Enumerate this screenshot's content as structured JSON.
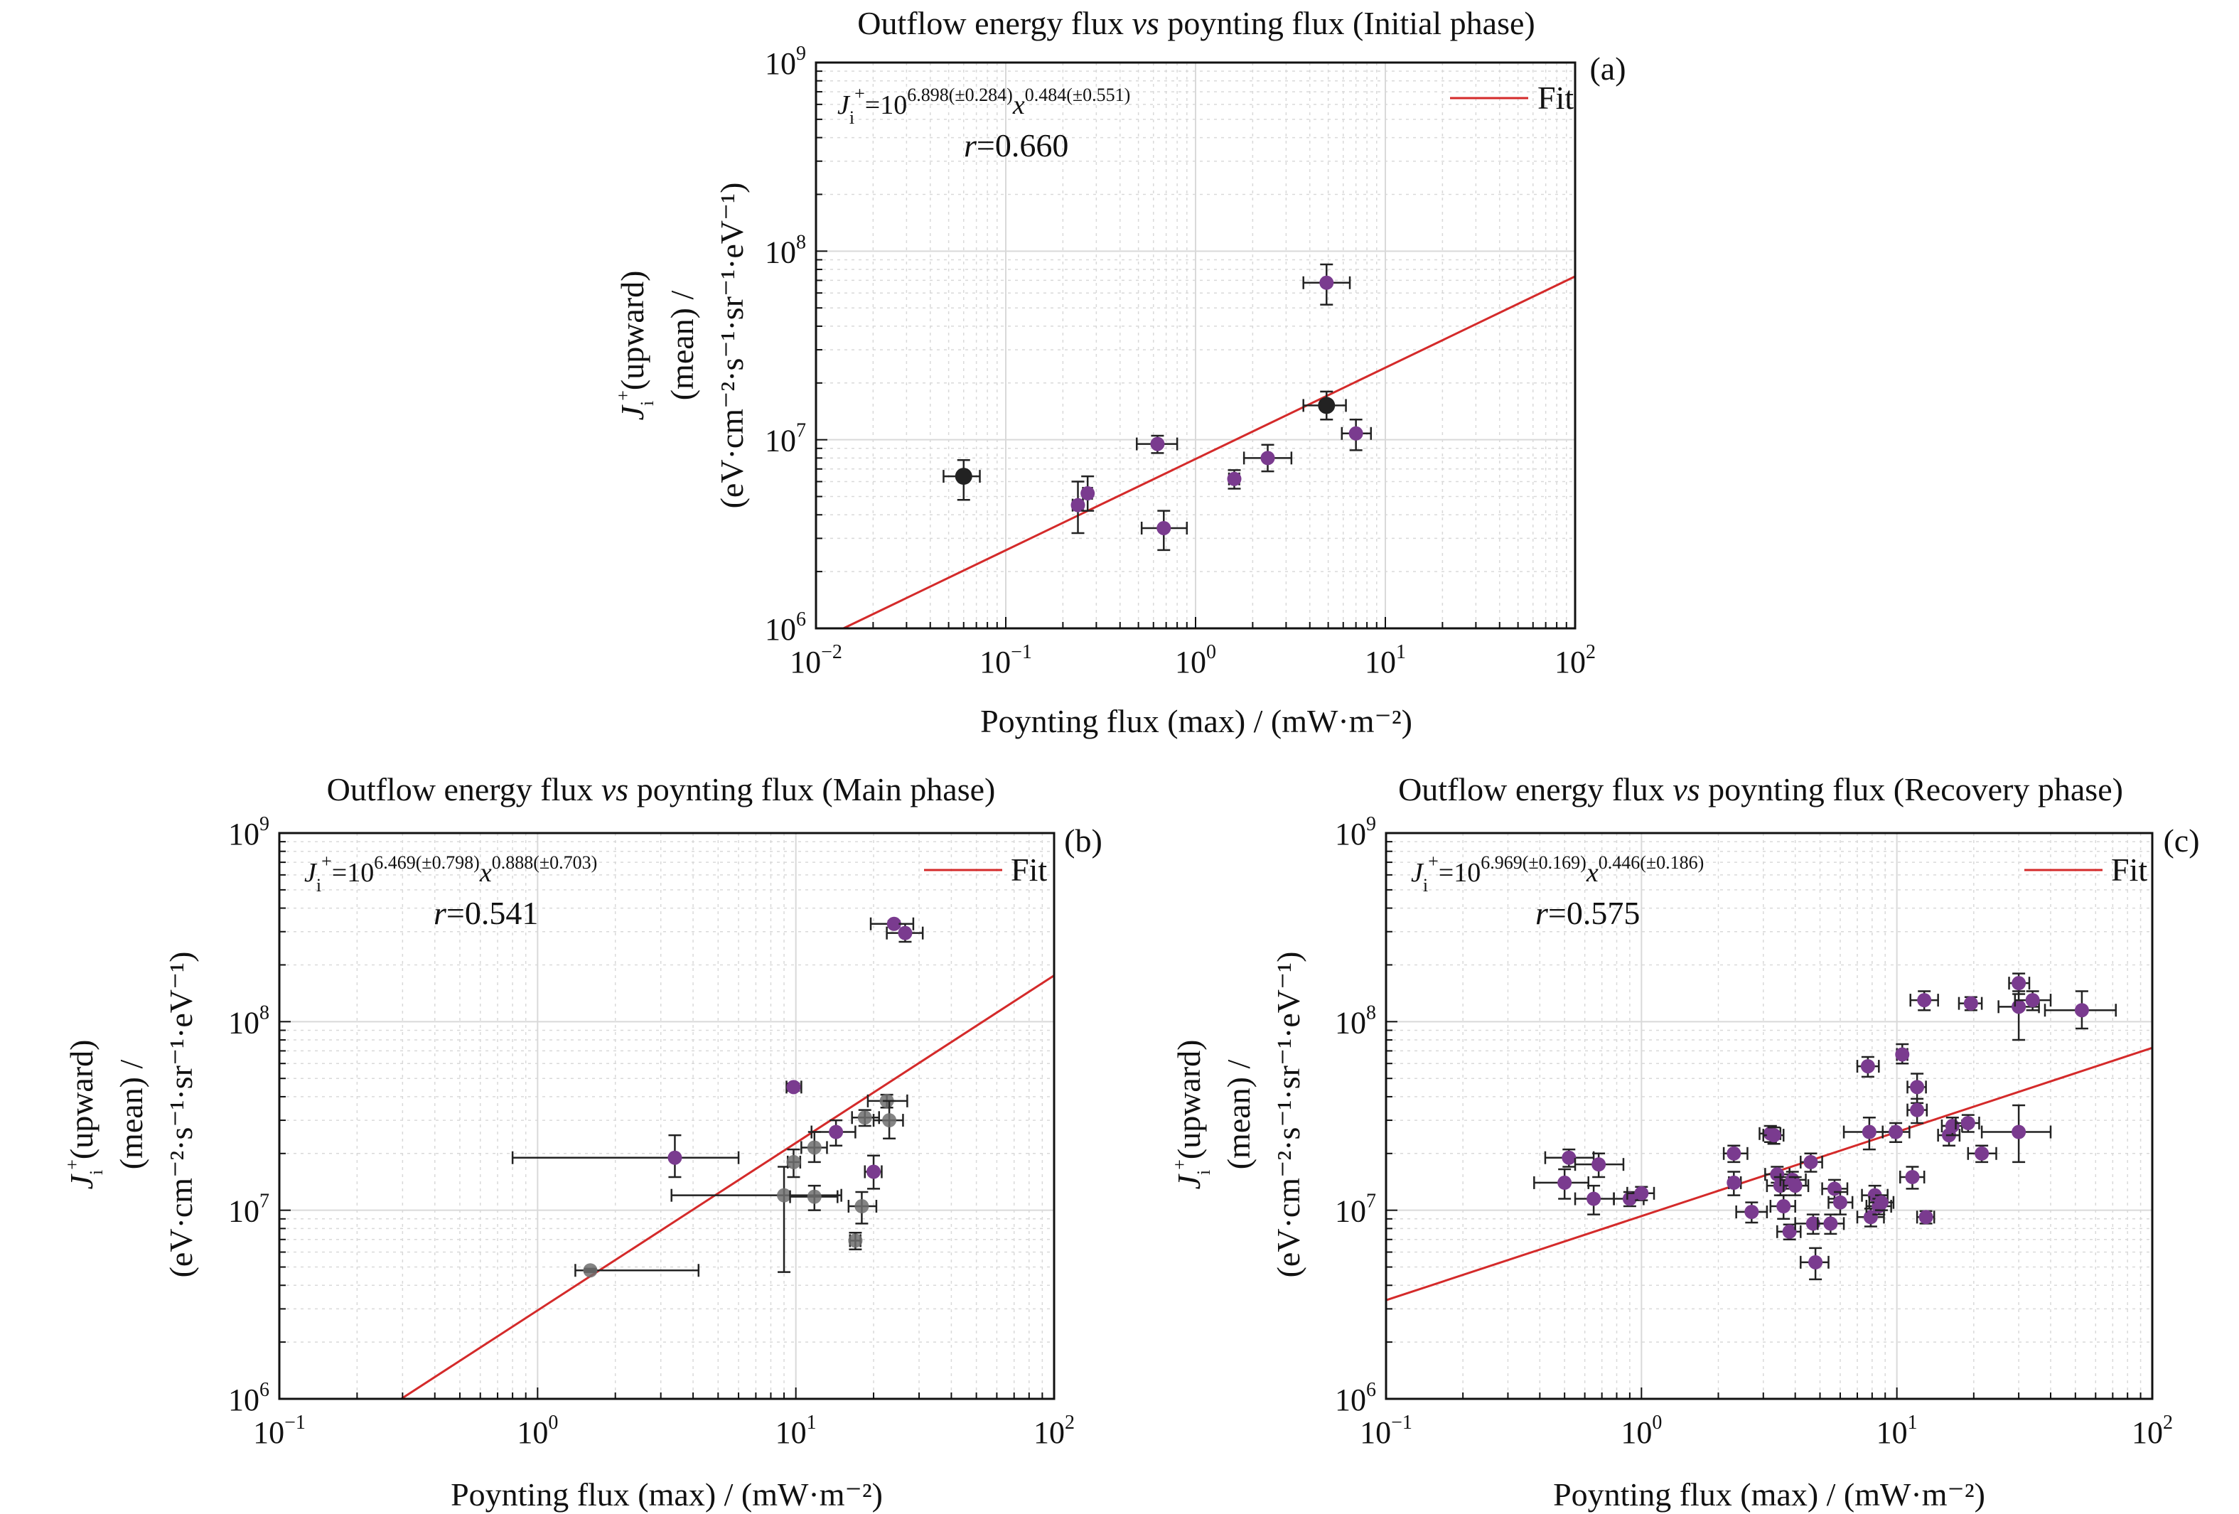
{
  "figure": {
    "panels": [
      {
        "id": "a",
        "title_pre": "Outflow energy flux ",
        "title_it": "vs",
        "title_post": " poynting flux (Initial phase)",
        "xlabel": "Poynting flux (max) / (mW·m⁻²)",
        "ylabel_line1": "(upward)",
        "ylabel_line2": "(mean) /",
        "ylabel_line3": "(eV·cm⁻²·s⁻¹·sr⁻¹·eV⁻¹)",
        "tag": "(a)",
        "legend": "Fit",
        "eq_coef": "6.898(±0.284)",
        "eq_exp": "0.484(±0.551)",
        "r_value": "0.660"
      },
      {
        "id": "b",
        "title_pre": "Outflow energy flux ",
        "title_it": "vs",
        "title_post": " poynting flux (Main phase)",
        "xlabel": "Poynting flux (max) / (mW·m⁻²)",
        "ylabel_line1": "(upward)",
        "ylabel_line2": "(mean) /",
        "ylabel_line3": "(eV·cm⁻²·s⁻¹·sr⁻¹·eV⁻¹)",
        "tag": "(b)",
        "legend": "Fit",
        "eq_coef": "6.469(±0.798)",
        "eq_exp": "0.888(±0.703)",
        "r_value": "0.541"
      },
      {
        "id": "c",
        "title_pre": "Outflow energy flux ",
        "title_it": "vs",
        "title_post": " poynting flux (Recovery phase)",
        "xlabel": "Poynting flux (max) / (mW·m⁻²)",
        "ylabel_line1": "(upward)",
        "ylabel_line2": "(mean) /",
        "ylabel_line3": "(eV·cm⁻²·s⁻¹·sr⁻¹·eV⁻¹)",
        "tag": "(c)",
        "legend": "Fit",
        "eq_coef": "6.969(±0.169)",
        "eq_exp": "0.446(±0.186)",
        "r_value": "0.575"
      }
    ],
    "colors": {
      "point_purple": "#7a3b8f",
      "point_black": "#222222",
      "point_gray": "#6e6e6e",
      "fit": "#d42a2a",
      "grid": "#d9d9d9",
      "axis": "#111111"
    }
  },
  "chart_data": [
    {
      "type": "scatter",
      "panel": "a",
      "xscale": "log",
      "yscale": "log",
      "xlim": [
        0.01,
        100
      ],
      "ylim": [
        1000000,
        1000000000
      ],
      "grid": true,
      "legend_position": "top-right",
      "fit": {
        "log10_coefficient": 6.898,
        "exponent": 0.484
      },
      "points": [
        {
          "x": 0.06,
          "y": 6400000,
          "xlo": 0.047,
          "xhi": 0.073,
          "ylo": 4800000,
          "yhi": 7800000,
          "color": "black"
        },
        {
          "x": 0.24,
          "y": 4500000,
          "xlo": 0.225,
          "xhi": 0.255,
          "ylo": 3200000,
          "yhi": 6000000,
          "color": "purple"
        },
        {
          "x": 0.27,
          "y": 5200000,
          "xlo": 0.255,
          "xhi": 0.285,
          "ylo": 4200000,
          "yhi": 6400000,
          "color": "purple"
        },
        {
          "x": 0.63,
          "y": 9500000,
          "xlo": 0.49,
          "xhi": 0.8,
          "ylo": 8500000,
          "yhi": 10500000,
          "color": "purple"
        },
        {
          "x": 0.68,
          "y": 3400000,
          "xlo": 0.52,
          "xhi": 0.9,
          "ylo": 2600000,
          "yhi": 4200000,
          "color": "purple"
        },
        {
          "x": 1.6,
          "y": 6200000,
          "xlo": 1.5,
          "xhi": 1.7,
          "ylo": 5500000,
          "yhi": 6900000,
          "color": "purple"
        },
        {
          "x": 2.4,
          "y": 8000000,
          "xlo": 1.8,
          "xhi": 3.2,
          "ylo": 6800000,
          "yhi": 9400000,
          "color": "purple"
        },
        {
          "x": 4.9,
          "y": 68000000,
          "xlo": 3.7,
          "xhi": 6.5,
          "ylo": 52000000,
          "yhi": 85000000,
          "color": "purple"
        },
        {
          "x": 4.9,
          "y": 15200000,
          "xlo": 3.7,
          "xhi": 6.2,
          "ylo": 12800000,
          "yhi": 18000000,
          "color": "black"
        },
        {
          "x": 7.0,
          "y": 10800000,
          "xlo": 5.9,
          "xhi": 8.4,
          "ylo": 8800000,
          "yhi": 12800000,
          "color": "purple"
        }
      ]
    },
    {
      "type": "scatter",
      "panel": "b",
      "xscale": "log",
      "yscale": "log",
      "xlim": [
        0.1,
        100
      ],
      "ylim": [
        1000000,
        1000000000
      ],
      "grid": true,
      "legend_position": "top-right",
      "fit": {
        "log10_coefficient": 6.469,
        "exponent": 0.888
      },
      "points": [
        {
          "x": 1.6,
          "y": 4800000,
          "xlo": 1.4,
          "xhi": 4.2,
          "ylo": 4700000,
          "yhi": 4900000,
          "color": "gray"
        },
        {
          "x": 3.4,
          "y": 19000000,
          "xlo": 0.8,
          "xhi": 6.0,
          "ylo": 15000000,
          "yhi": 25000000,
          "color": "purple"
        },
        {
          "x": 9.0,
          "y": 12000000,
          "xlo": 3.3,
          "xhi": 15.0,
          "ylo": 4700000,
          "yhi": 17000000,
          "color": "gray"
        },
        {
          "x": 9.8,
          "y": 45000000,
          "xlo": 9.2,
          "xhi": 10.5,
          "ylo": 43000000,
          "yhi": 47000000,
          "color": "purple"
        },
        {
          "x": 9.8,
          "y": 18000000,
          "xlo": 9.3,
          "xhi": 10.4,
          "ylo": 15000000,
          "yhi": 21000000,
          "color": "gray"
        },
        {
          "x": 11.8,
          "y": 21500000,
          "xlo": 10.5,
          "xhi": 13.2,
          "ylo": 18000000,
          "yhi": 26000000,
          "color": "gray"
        },
        {
          "x": 11.8,
          "y": 11800000,
          "xlo": 9.5,
          "xhi": 14.5,
          "ylo": 10000000,
          "yhi": 13500000,
          "color": "gray"
        },
        {
          "x": 14.3,
          "y": 26000000,
          "xlo": 11.5,
          "xhi": 17.0,
          "ylo": 22000000,
          "yhi": 30000000,
          "color": "purple"
        },
        {
          "x": 17.0,
          "y": 6900000,
          "xlo": 16.2,
          "xhi": 17.8,
          "ylo": 6200000,
          "yhi": 7600000,
          "color": "gray"
        },
        {
          "x": 18.0,
          "y": 10500000,
          "xlo": 16.0,
          "xhi": 20.5,
          "ylo": 8500000,
          "yhi": 12500000,
          "color": "gray"
        },
        {
          "x": 18.5,
          "y": 31000000,
          "xlo": 16.5,
          "xhi": 21.0,
          "ylo": 28000000,
          "yhi": 34000000,
          "color": "gray"
        },
        {
          "x": 20.0,
          "y": 16000000,
          "xlo": 18.5,
          "xhi": 21.5,
          "ylo": 13000000,
          "yhi": 19500000,
          "color": "purple"
        },
        {
          "x": 22.5,
          "y": 38000000,
          "xlo": 19.0,
          "xhi": 27.0,
          "ylo": 35000000,
          "yhi": 41000000,
          "color": "gray"
        },
        {
          "x": 23.0,
          "y": 30000000,
          "xlo": 20.0,
          "xhi": 26.0,
          "ylo": 24000000,
          "yhi": 38000000,
          "color": "gray"
        },
        {
          "x": 24.0,
          "y": 330000000,
          "xlo": 19.5,
          "xhi": 28.5,
          "ylo": 318000000,
          "yhi": 342000000,
          "color": "purple"
        },
        {
          "x": 26.5,
          "y": 295000000,
          "xlo": 22.5,
          "xhi": 31.0,
          "ylo": 265000000,
          "yhi": 330000000,
          "color": "purple"
        }
      ]
    },
    {
      "type": "scatter",
      "panel": "c",
      "xscale": "log",
      "yscale": "log",
      "xlim": [
        0.1,
        100
      ],
      "ylim": [
        1000000,
        1000000000
      ],
      "grid": true,
      "legend_position": "top-right",
      "fit": {
        "log10_coefficient": 6.969,
        "exponent": 0.446
      },
      "points": [
        {
          "x": 0.5,
          "y": 14000000,
          "xlo": 0.38,
          "xhi": 0.62,
          "ylo": 11500000,
          "yhi": 16500000,
          "color": "purple"
        },
        {
          "x": 0.52,
          "y": 19000000,
          "xlo": 0.42,
          "xhi": 0.65,
          "ylo": 17000000,
          "yhi": 21000000,
          "color": "purple"
        },
        {
          "x": 0.65,
          "y": 11500000,
          "xlo": 0.55,
          "xhi": 0.78,
          "ylo": 9500000,
          "yhi": 13500000,
          "color": "purple"
        },
        {
          "x": 0.68,
          "y": 17500000,
          "xlo": 0.55,
          "xhi": 0.85,
          "ylo": 15000000,
          "yhi": 20000000,
          "color": "purple"
        },
        {
          "x": 0.9,
          "y": 11500000,
          "xlo": 0.78,
          "xhi": 1.02,
          "ylo": 10500000,
          "yhi": 12500000,
          "color": "purple"
        },
        {
          "x": 1.0,
          "y": 12300000,
          "xlo": 0.88,
          "xhi": 1.12,
          "ylo": 11300000,
          "yhi": 13300000,
          "color": "purple"
        },
        {
          "x": 2.3,
          "y": 20000000,
          "xlo": 2.1,
          "xhi": 2.6,
          "ylo": 18000000,
          "yhi": 22000000,
          "color": "purple"
        },
        {
          "x": 2.3,
          "y": 14000000,
          "xlo": 2.2,
          "xhi": 2.45,
          "ylo": 12000000,
          "yhi": 16000000,
          "color": "purple"
        },
        {
          "x": 2.7,
          "y": 9800000,
          "xlo": 2.35,
          "xhi": 3.1,
          "ylo": 8600000,
          "yhi": 11000000,
          "color": "purple"
        },
        {
          "x": 3.2,
          "y": 25500000,
          "xlo": 2.9,
          "xhi": 3.5,
          "ylo": 23000000,
          "yhi": 28000000,
          "color": "purple"
        },
        {
          "x": 3.3,
          "y": 25000000,
          "xlo": 3.0,
          "xhi": 3.6,
          "ylo": 22500000,
          "yhi": 27500000,
          "color": "purple"
        },
        {
          "x": 3.4,
          "y": 15500000,
          "xlo": 3.05,
          "xhi": 3.8,
          "ylo": 14000000,
          "yhi": 17000000,
          "color": "purple"
        },
        {
          "x": 3.5,
          "y": 13500000,
          "xlo": 3.1,
          "xhi": 4.0,
          "ylo": 12000000,
          "yhi": 15000000,
          "color": "purple"
        },
        {
          "x": 3.6,
          "y": 10500000,
          "xlo": 3.2,
          "xhi": 4.0,
          "ylo": 9000000,
          "yhi": 12000000,
          "color": "purple"
        },
        {
          "x": 3.8,
          "y": 7700000,
          "xlo": 3.4,
          "xhi": 4.2,
          "ylo": 7000000,
          "yhi": 8400000,
          "color": "purple"
        },
        {
          "x": 3.9,
          "y": 14500000,
          "xlo": 3.5,
          "xhi": 4.4,
          "ylo": 13000000,
          "yhi": 16000000,
          "color": "purple"
        },
        {
          "x": 4.0,
          "y": 13500000,
          "xlo": 3.6,
          "xhi": 4.5,
          "ylo": 12000000,
          "yhi": 15000000,
          "color": "purple"
        },
        {
          "x": 4.6,
          "y": 18000000,
          "xlo": 4.2,
          "xhi": 5.1,
          "ylo": 16000000,
          "yhi": 20000000,
          "color": "purple"
        },
        {
          "x": 4.7,
          "y": 8500000,
          "xlo": 4.0,
          "xhi": 5.4,
          "ylo": 7500000,
          "yhi": 9500000,
          "color": "purple"
        },
        {
          "x": 4.8,
          "y": 5300000,
          "xlo": 4.2,
          "xhi": 5.4,
          "ylo": 4300000,
          "yhi": 6300000,
          "color": "purple"
        },
        {
          "x": 5.5,
          "y": 8500000,
          "xlo": 4.9,
          "xhi": 6.2,
          "ylo": 7500000,
          "yhi": 9500000,
          "color": "purple"
        },
        {
          "x": 5.7,
          "y": 13000000,
          "xlo": 5.1,
          "xhi": 6.4,
          "ylo": 11500000,
          "yhi": 14500000,
          "color": "purple"
        },
        {
          "x": 6.0,
          "y": 11000000,
          "xlo": 5.4,
          "xhi": 6.7,
          "ylo": 9500000,
          "yhi": 12500000,
          "color": "purple"
        },
        {
          "x": 7.7,
          "y": 58000000,
          "xlo": 7.0,
          "xhi": 8.5,
          "ylo": 51000000,
          "yhi": 65000000,
          "color": "purple"
        },
        {
          "x": 7.8,
          "y": 26000000,
          "xlo": 6.2,
          "xhi": 9.6,
          "ylo": 21000000,
          "yhi": 31000000,
          "color": "purple"
        },
        {
          "x": 7.9,
          "y": 9200000,
          "xlo": 7.0,
          "xhi": 8.9,
          "ylo": 8200000,
          "yhi": 10200000,
          "color": "purple"
        },
        {
          "x": 8.2,
          "y": 12000000,
          "xlo": 7.3,
          "xhi": 9.2,
          "ylo": 10500000,
          "yhi": 13500000,
          "color": "purple"
        },
        {
          "x": 8.5,
          "y": 10500000,
          "xlo": 7.6,
          "xhi": 9.5,
          "ylo": 9500000,
          "yhi": 11500000,
          "color": "purple"
        },
        {
          "x": 8.7,
          "y": 11000000,
          "xlo": 7.8,
          "xhi": 9.7,
          "ylo": 10000000,
          "yhi": 12000000,
          "color": "purple"
        },
        {
          "x": 9.9,
          "y": 26000000,
          "xlo": 8.8,
          "xhi": 11.2,
          "ylo": 23000000,
          "yhi": 29000000,
          "color": "purple"
        },
        {
          "x": 10.5,
          "y": 67000000,
          "xlo": 10.0,
          "xhi": 11.0,
          "ylo": 60000000,
          "yhi": 76000000,
          "color": "purple"
        },
        {
          "x": 11.5,
          "y": 15000000,
          "xlo": 10.3,
          "xhi": 12.8,
          "ylo": 13000000,
          "yhi": 17000000,
          "color": "purple"
        },
        {
          "x": 12.0,
          "y": 45000000,
          "xlo": 11.0,
          "xhi": 13.0,
          "ylo": 37000000,
          "yhi": 53000000,
          "color": "purple"
        },
        {
          "x": 12.0,
          "y": 34000000,
          "xlo": 11.0,
          "xhi": 13.1,
          "ylo": 29000000,
          "yhi": 39000000,
          "color": "purple"
        },
        {
          "x": 12.8,
          "y": 130000000,
          "xlo": 11.3,
          "xhi": 14.5,
          "ylo": 115000000,
          "yhi": 145000000,
          "color": "purple"
        },
        {
          "x": 13.0,
          "y": 9200000,
          "xlo": 12.0,
          "xhi": 14.0,
          "ylo": 8500000,
          "yhi": 9900000,
          "color": "purple"
        },
        {
          "x": 16.0,
          "y": 25000000,
          "xlo": 14.5,
          "xhi": 17.6,
          "ylo": 22000000,
          "yhi": 28000000,
          "color": "purple"
        },
        {
          "x": 16.5,
          "y": 28000000,
          "xlo": 15.0,
          "xhi": 18.0,
          "ylo": 25000000,
          "yhi": 31000000,
          "color": "purple"
        },
        {
          "x": 19.0,
          "y": 29000000,
          "xlo": 17.0,
          "xhi": 21.0,
          "ylo": 26000000,
          "yhi": 32000000,
          "color": "purple"
        },
        {
          "x": 19.5,
          "y": 125000000,
          "xlo": 17.5,
          "xhi": 21.5,
          "ylo": 115000000,
          "yhi": 135000000,
          "color": "purple"
        },
        {
          "x": 21.5,
          "y": 20000000,
          "xlo": 19.0,
          "xhi": 24.5,
          "ylo": 18000000,
          "yhi": 22000000,
          "color": "purple"
        },
        {
          "x": 30.0,
          "y": 160000000,
          "xlo": 27.5,
          "xhi": 33.0,
          "ylo": 140000000,
          "yhi": 180000000,
          "color": "purple"
        },
        {
          "x": 30.0,
          "y": 120000000,
          "xlo": 25.0,
          "xhi": 36.0,
          "ylo": 80000000,
          "yhi": 145000000,
          "color": "purple"
        },
        {
          "x": 30.0,
          "y": 26000000,
          "xlo": 21.5,
          "xhi": 40.0,
          "ylo": 18000000,
          "yhi": 36000000,
          "color": "purple"
        },
        {
          "x": 34.0,
          "y": 130000000,
          "xlo": 29.0,
          "xhi": 40.0,
          "ylo": 115000000,
          "yhi": 145000000,
          "color": "purple"
        },
        {
          "x": 53.0,
          "y": 115000000,
          "xlo": 38.0,
          "xhi": 72.0,
          "ylo": 92000000,
          "yhi": 145000000,
          "color": "purple"
        }
      ]
    }
  ]
}
